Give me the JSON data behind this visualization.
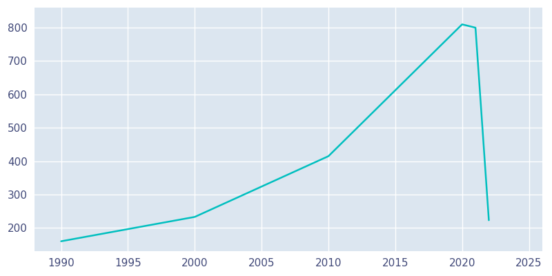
{
  "years": [
    1990,
    2000,
    2010,
    2020,
    2021,
    2022
  ],
  "population": [
    160,
    233,
    415,
    810,
    800,
    223
  ],
  "line_color": "#00BFBF",
  "fig_bg_color": "#ffffff",
  "axes_bg_color": "#dce6f0",
  "xlim": [
    1988,
    2026
  ],
  "ylim": [
    130,
    860
  ],
  "xticks": [
    1990,
    1995,
    2000,
    2005,
    2010,
    2015,
    2020,
    2025
  ],
  "yticks": [
    200,
    300,
    400,
    500,
    600,
    700,
    800
  ],
  "line_width": 1.8,
  "tick_label_color": "#404878",
  "tick_label_size": 11
}
